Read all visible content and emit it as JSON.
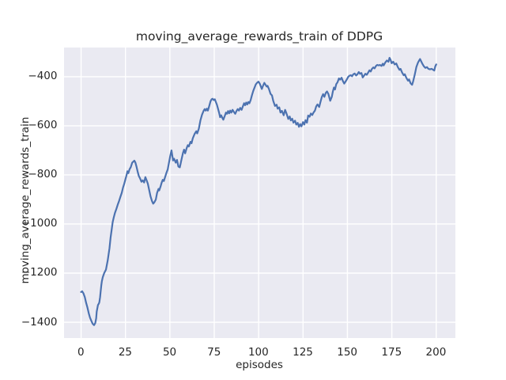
{
  "figure": {
    "title": "moving_average_rewards_train of DDPG",
    "xlabel": "episodes",
    "ylabel": "moving_average_rewards_train"
  },
  "colors": {
    "line": "#4C72B0",
    "plot_bg": "#EAEAF2",
    "grid": "#FFFFFF",
    "text": "#262626",
    "fig_bg": "#FFFFFF"
  },
  "chart_data": {
    "type": "line",
    "title": "moving_average_rewards_train of DDPG",
    "xlabel": "episodes",
    "ylabel": "moving_average_rewards_train",
    "grid": true,
    "legend": false,
    "xlim": [
      -9.6,
      210.8
    ],
    "ylim": [
      -1467,
      -281
    ],
    "xticks": [
      0,
      25,
      50,
      75,
      100,
      125,
      150,
      175,
      200
    ],
    "xticklabels": [
      "0",
      "25",
      "50",
      "75",
      "100",
      "125",
      "150",
      "175",
      "200"
    ],
    "yticks": [
      -400,
      -600,
      -800,
      -1000,
      -1200,
      -1400
    ],
    "yticklabels": [
      "−400",
      "−600",
      "−800",
      "−1000",
      "−1200",
      "−1400"
    ],
    "x": [
      0,
      0.6,
      1.3,
      2.1,
      2.8,
      3.6,
      4.3,
      5,
      5.8,
      6.5,
      7.3,
      8,
      8.5,
      8.8,
      9.5,
      10,
      10.3,
      10.7,
      11,
      11.4,
      11.7,
      12.2,
      13,
      14,
      15,
      16,
      16.6,
      17.2,
      17.8,
      18.4,
      19.1,
      19.9,
      20.6,
      21.4,
      22.1,
      22.9,
      23.6,
      24.3,
      25.1,
      25.5,
      26.1,
      26.6,
      27.3,
      28,
      28.8,
      30,
      30.6,
      31.2,
      31.8,
      32.5,
      33.2,
      34,
      34.7,
      35.5,
      36.2,
      36.9,
      37.6,
      38.4,
      39.1,
      39.9,
      40.6,
      41.3,
      42.1,
      42.8,
      43.6,
      44,
      44.8,
      45.4,
      46,
      46.6,
      47.3,
      48,
      48.8,
      49.5,
      50.2,
      50.9,
      51.8,
      52.4,
      53.3,
      54,
      54.8,
      55.6,
      56.5,
      57.4,
      58,
      58.6,
      59.5,
      60.1,
      60.7,
      61.6,
      62.2,
      62.9,
      64,
      64.9,
      65.4,
      66.3,
      67.2,
      68.1,
      69,
      69.6,
      70.2,
      70.8,
      71.4,
      72.1,
      72.9,
      73.5,
      74.1,
      74.7,
      75.3,
      75.9,
      76.5,
      77.1,
      77.7,
      78.3,
      78.9,
      79.5,
      80.1,
      80.9,
      81.6,
      82.2,
      82.8,
      83.4,
      84,
      84.6,
      85.3,
      86,
      86.8,
      87.5,
      88.2,
      88.9,
      89.6,
      90.4,
      91.1,
      91.8,
      92.4,
      93,
      93.6,
      94.2,
      94.8,
      95.5,
      96.2,
      97,
      97.7,
      98.4,
      99.2,
      99.9,
      100.6,
      101.8,
      102.4,
      103.2,
      103.8,
      104.5,
      105,
      105.8,
      106.7,
      107.5,
      108.2,
      109.2,
      110.1,
      110.7,
      111.6,
      112.3,
      113.1,
      114.1,
      114.9,
      115.6,
      116.7,
      117.5,
      118.1,
      118.9,
      119.6,
      120.5,
      121.2,
      122,
      122.7,
      123.4,
      124.1,
      125,
      125.7,
      126.4,
      127.2,
      127.9,
      128.7,
      129.4,
      130.2,
      130.9,
      131.7,
      132.4,
      133.1,
      134.1,
      134.8,
      135.6,
      136.3,
      137,
      137.8,
      138.5,
      139.3,
      140.3,
      141.2,
      141.8,
      142.4,
      143,
      143.7,
      144.4,
      145.2,
      145.9,
      146.7,
      147.4,
      148.2,
      148.9,
      149.6,
      150.4,
      151.1,
      151.9,
      152.6,
      153.3,
      154.1,
      154.9,
      155.6,
      156.4,
      157.1,
      157.9,
      158.6,
      159.4,
      160.1,
      160.9,
      161.6,
      162.4,
      163.1,
      163.8,
      164.6,
      165.3,
      166.1,
      166.8,
      167.6,
      168.3,
      169.2,
      169.9,
      170.4,
      171.3,
      172.2,
      173.1,
      173.7,
      174.3,
      174.9,
      175.8,
      176.6,
      177.5,
      178.4,
      179.3,
      179.9,
      180.8,
      181.7,
      182.3,
      183.2,
      184.1,
      184.7,
      185.6,
      186.4,
      187,
      187.9,
      188.8,
      189.7,
      190.3,
      190.9,
      191.5,
      192.1,
      193,
      193.9,
      194.8,
      195.6,
      196.5,
      197.4,
      198.3,
      198.9,
      199.5,
      200
    ],
    "series": [
      {
        "name": "DDPG",
        "values": [
          -1277,
          -1274,
          -1282,
          -1298,
          -1320,
          -1341,
          -1363,
          -1381,
          -1395,
          -1406,
          -1412,
          -1403,
          -1384,
          -1357,
          -1330,
          -1324,
          -1318,
          -1298,
          -1276,
          -1249,
          -1233,
          -1217,
          -1200,
          -1186,
          -1148,
          -1098,
          -1056,
          -1024,
          -992,
          -973,
          -954,
          -938,
          -922,
          -906,
          -890,
          -873,
          -852,
          -836,
          -814,
          -804,
          -785,
          -793,
          -777,
          -768,
          -750,
          -742,
          -750,
          -766,
          -785,
          -804,
          -814,
          -828,
          -822,
          -831,
          -809,
          -822,
          -836,
          -863,
          -887,
          -906,
          -917,
          -911,
          -900,
          -873,
          -857,
          -863,
          -846,
          -831,
          -820,
          -825,
          -809,
          -793,
          -777,
          -750,
          -723,
          -700,
          -741,
          -734,
          -750,
          -739,
          -766,
          -769,
          -739,
          -710,
          -697,
          -712,
          -690,
          -679,
          -684,
          -665,
          -671,
          -651,
          -632,
          -622,
          -631,
          -612,
          -578,
          -555,
          -539,
          -532,
          -538,
          -530,
          -538,
          -521,
          -500,
          -492,
          -490,
          -495,
          -492,
          -503,
          -514,
          -530,
          -546,
          -565,
          -557,
          -567,
          -575,
          -560,
          -546,
          -551,
          -540,
          -549,
          -538,
          -546,
          -535,
          -543,
          -551,
          -540,
          -532,
          -538,
          -527,
          -535,
          -521,
          -508,
          -516,
          -505,
          -513,
          -503,
          -508,
          -495,
          -476,
          -457,
          -444,
          -431,
          -424,
          -420,
          -428,
          -450,
          -438,
          -425,
          -432,
          -440,
          -437,
          -450,
          -470,
          -476,
          -498,
          -519,
          -514,
          -530,
          -525,
          -546,
          -539,
          -557,
          -535,
          -548,
          -572,
          -562,
          -578,
          -571,
          -587,
          -579,
          -595,
          -588,
          -604,
          -593,
          -602,
          -585,
          -595,
          -577,
          -587,
          -558,
          -563,
          -550,
          -556,
          -546,
          -538,
          -521,
          -513,
          -523,
          -503,
          -482,
          -471,
          -482,
          -466,
          -460,
          -471,
          -498,
          -482,
          -460,
          -444,
          -452,
          -430,
          -423,
          -407,
          -412,
          -404,
          -417,
          -428,
          -420,
          -412,
          -401,
          -396,
          -394,
          -398,
          -390,
          -387,
          -395,
          -390,
          -381,
          -388,
          -385,
          -403,
          -395,
          -388,
          -392,
          -384,
          -374,
          -379,
          -368,
          -362,
          -366,
          -356,
          -352,
          -354,
          -352,
          -356,
          -347,
          -354,
          -342,
          -334,
          -339,
          -323,
          -331,
          -345,
          -339,
          -350,
          -346,
          -361,
          -372,
          -368,
          -383,
          -394,
          -390,
          -405,
          -416,
          -411,
          -427,
          -433,
          -419,
          -392,
          -361,
          -343,
          -335,
          -328,
          -337,
          -346,
          -357,
          -364,
          -361,
          -368,
          -370,
          -368,
          -372,
          -375,
          -357,
          -350
        ]
      }
    ]
  }
}
